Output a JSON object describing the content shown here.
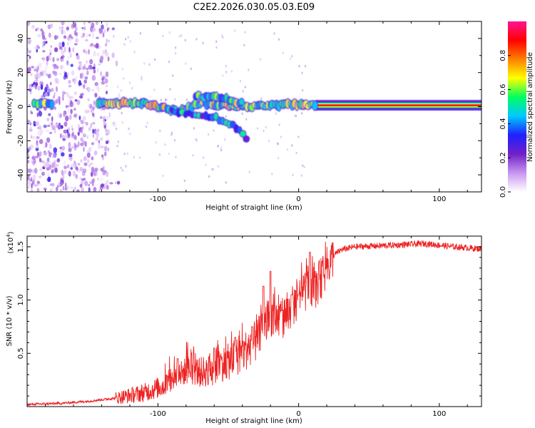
{
  "figure": {
    "title": "C2E2.2026.030.05.03.E09"
  },
  "chart_data": [
    {
      "type": "heatmap",
      "title": "C2E2.2026.030.05.03.E09",
      "xlabel": "Height of straight line (km)",
      "ylabel": "Frequency (Hz)",
      "xlim": [
        -193,
        130
      ],
      "ylim": [
        -50,
        50
      ],
      "xticks": [
        -100,
        0,
        100
      ],
      "xtick_labels": [
        "-100",
        "0",
        "100"
      ],
      "yticks": [
        -40,
        -20,
        0,
        20,
        40
      ],
      "ytick_labels": [
        "-40",
        "-20",
        "0",
        "20",
        "40"
      ],
      "colorbar": {
        "label": "Normalized spectral amplitude",
        "range": [
          0,
          1
        ],
        "ticks": [
          0.0,
          0.2,
          0.4,
          0.6,
          0.8
        ],
        "tick_labels": [
          "0.0",
          "0.2",
          "0.4",
          "0.6",
          "0.8"
        ],
        "colormap": [
          "#ffffff",
          "#c896f0",
          "#7020c8",
          "#2020ff",
          "#00c8ff",
          "#00ff60",
          "#ffff00",
          "#ff8000",
          "#ff0000",
          "#ff1493"
        ]
      },
      "features": [
        {
          "name": "noise region",
          "x_range": [
            -193,
            -135
          ],
          "freq_range": [
            -50,
            50
          ],
          "amplitude": 0.15
        },
        {
          "name": "main tone",
          "x_range": [
            -193,
            130
          ],
          "freq_center": [
            [
              -193,
              2
            ],
            [
              -150,
              2
            ],
            [
              -110,
              2
            ],
            [
              -85,
              -3
            ],
            [
              -70,
              2
            ],
            [
              -40,
              0
            ],
            [
              -10,
              1
            ],
            [
              5,
              1
            ],
            [
              15,
              0.8
            ],
            [
              130,
              0.8
            ]
          ],
          "amplitude": 0.95
        },
        {
          "name": "upper branch",
          "x_range": [
            -73,
            -40
          ],
          "freq_center": [
            [
              -73,
              6
            ],
            [
              -55,
              5
            ],
            [
              -40,
              2
            ]
          ]
        },
        {
          "name": "lower branch",
          "x_range": [
            -90,
            -35
          ],
          "freq_center": [
            [
              -90,
              -3
            ],
            [
              -60,
              -6
            ],
            [
              -45,
              -12
            ],
            [
              -35,
              -20
            ]
          ]
        }
      ]
    },
    {
      "type": "line",
      "xlabel": "Height of straight line (km)",
      "ylabel": "SNR (10 * v/v)",
      "multiplier_label": "(x10",
      "multiplier_exponent": "4",
      "xlim": [
        -193,
        130
      ],
      "ylim": [
        0,
        1.6
      ],
      "xticks": [
        -100,
        0,
        100
      ],
      "xtick_labels": [
        "-100",
        "0",
        "100"
      ],
      "yticks": [
        0.5,
        1.0,
        1.5
      ],
      "ytick_labels": [
        "0.5",
        "1.0",
        "1.5"
      ],
      "series": [
        {
          "name": "SNR",
          "color": "#ee2222",
          "envelope_x": [
            -193,
            -170,
            -150,
            -130,
            -110,
            -95,
            -85,
            -78,
            -70,
            -60,
            -55,
            -50,
            -40,
            -30,
            -25,
            -20,
            -15,
            -10,
            -5,
            0,
            5,
            8,
            12,
            15,
            20,
            25,
            30,
            40,
            60,
            90,
            110,
            130
          ],
          "envelope_y": [
            0.02,
            0.03,
            0.05,
            0.08,
            0.13,
            0.2,
            0.3,
            0.35,
            0.32,
            0.35,
            0.4,
            0.42,
            0.5,
            0.62,
            0.72,
            0.85,
            0.82,
            0.85,
            0.92,
            1.02,
            1.1,
            1.15,
            1.12,
            1.18,
            1.3,
            1.42,
            1.47,
            1.5,
            1.51,
            1.53,
            1.5,
            1.48
          ],
          "peaks": [
            [
              -86,
              0.45
            ],
            [
              -60,
              0.55
            ],
            [
              -45,
              0.65
            ],
            [
              -33,
              0.75
            ],
            [
              -25,
              1.13
            ],
            [
              -20,
              1.27
            ],
            [
              -12,
              0.9
            ],
            [
              -5,
              1.05
            ],
            [
              0,
              1.05
            ],
            [
              8,
              1.45
            ]
          ]
        }
      ]
    }
  ]
}
